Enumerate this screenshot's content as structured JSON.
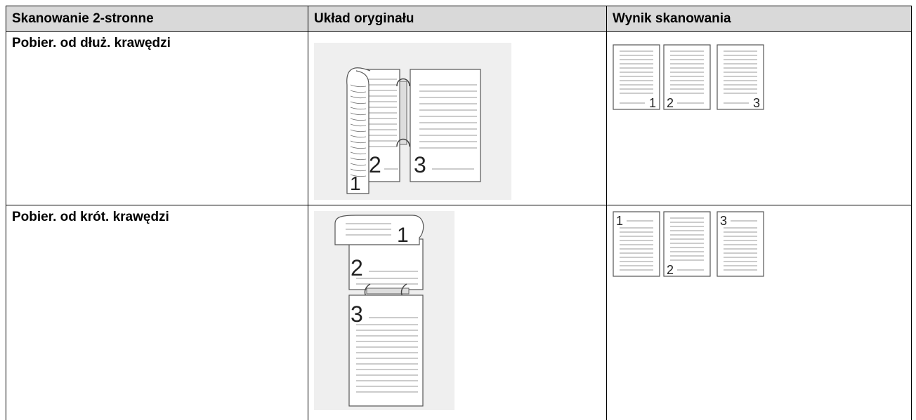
{
  "table": {
    "header": [
      "Skanowanie 2-stronne",
      "Układ oryginału",
      "Wynik skanowania"
    ],
    "rows": [
      {
        "label": "Pobier. od dłuż. krawędzi",
        "original_pages": [
          "1",
          "2",
          "3"
        ],
        "result_pages": [
          "1",
          "2",
          "3"
        ]
      },
      {
        "label": "Pobier. od krót. krawędzi",
        "original_pages": [
          "1",
          "2",
          "3"
        ],
        "result_pages": [
          "1",
          "2",
          "3"
        ]
      }
    ]
  }
}
